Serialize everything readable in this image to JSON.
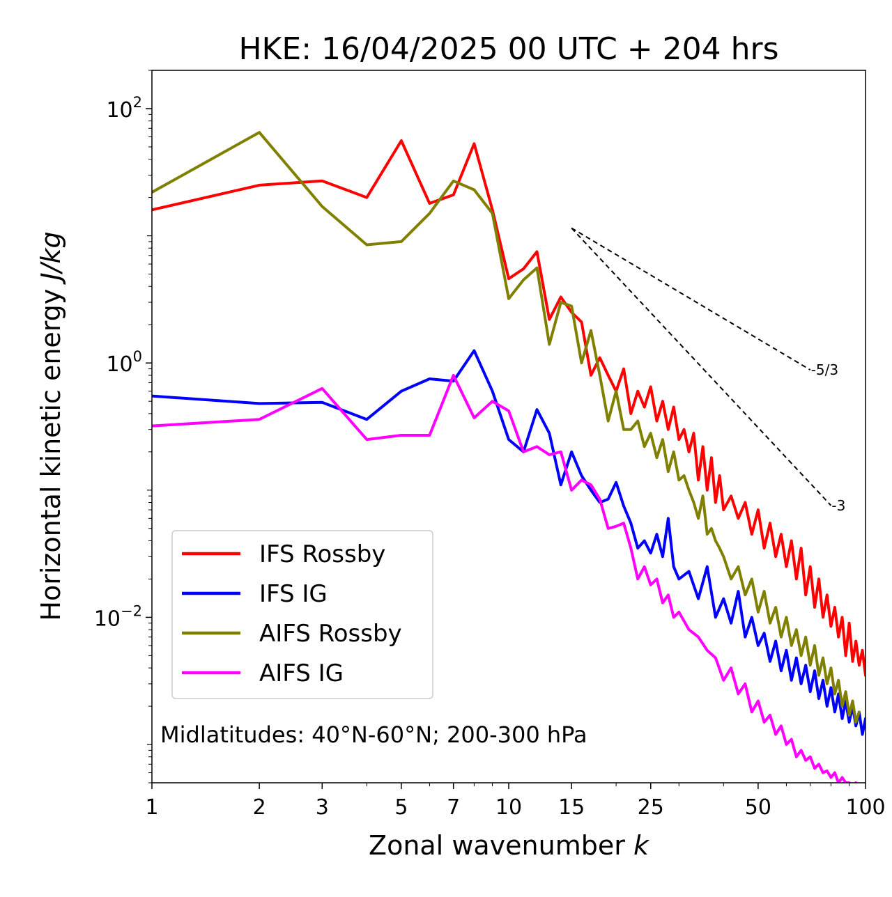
{
  "chart_data": {
    "type": "line",
    "title": "HKE: 16/04/2025 00 UTC + 204 hrs",
    "xlabel": "Zonal wavenumber",
    "xlabel_var": "k",
    "ylabel": "Horizontal kinetic energy",
    "ylabel_unit": "J/kg",
    "xscale": "log",
    "yscale": "log",
    "xlim": [
      1,
      100
    ],
    "ylim": [
      0.0005,
      200
    ],
    "x_ticks": [
      {
        "value": 1,
        "label": "1"
      },
      {
        "value": 2,
        "label": "2"
      },
      {
        "value": 3,
        "label": "3"
      },
      {
        "value": 5,
        "label": "5"
      },
      {
        "value": 7,
        "label": "7"
      },
      {
        "value": 10,
        "label": "10"
      },
      {
        "value": 15,
        "label": "15"
      },
      {
        "value": 25,
        "label": "25"
      },
      {
        "value": 50,
        "label": "50"
      },
      {
        "value": 100,
        "label": "100"
      }
    ],
    "y_ticks": [
      {
        "value": 100,
        "base": "10",
        "exp": "2"
      },
      {
        "value": 1,
        "base": "10",
        "exp": "0"
      },
      {
        "value": 0.01,
        "base": "10",
        "exp": "−2"
      }
    ],
    "legend_position": "lower-left",
    "annotation": "Midlatitudes: 40°N-60°N; 200-300 hPa",
    "reference_lines": [
      {
        "label": "-5/3",
        "slope": -1.6667,
        "x": [
          15,
          70
        ],
        "y_start": 11.5
      },
      {
        "label": "-3",
        "slope": -3,
        "x": [
          15,
          80
        ],
        "y_start": 11.5
      }
    ],
    "series": [
      {
        "name": "IFS Rossby",
        "color": "#ff0000",
        "x": [
          1,
          2,
          3,
          4,
          5,
          6,
          7,
          8,
          9,
          10,
          11,
          12,
          13,
          14,
          15,
          16,
          17,
          18,
          19,
          20,
          21,
          22,
          23,
          24,
          25,
          26,
          27,
          28,
          29,
          30,
          31,
          32,
          33,
          34,
          35,
          36,
          37,
          38,
          39,
          40,
          42,
          44,
          46,
          48,
          50,
          52,
          54,
          56,
          58,
          60,
          62,
          64,
          66,
          68,
          70,
          72,
          74,
          76,
          78,
          80,
          82,
          84,
          86,
          88,
          90,
          92,
          94,
          96,
          98,
          100
        ],
        "values": [
          16,
          25,
          27,
          20,
          56,
          18,
          21,
          53,
          16,
          4.6,
          5.5,
          7.5,
          2.2,
          3.3,
          2.5,
          2.1,
          0.8,
          1.1,
          0.8,
          0.6,
          0.9,
          0.4,
          0.6,
          0.45,
          0.65,
          0.35,
          0.5,
          0.3,
          0.45,
          0.25,
          0.3,
          0.2,
          0.28,
          0.12,
          0.22,
          0.1,
          0.18,
          0.08,
          0.13,
          0.07,
          0.09,
          0.06,
          0.08,
          0.045,
          0.07,
          0.035,
          0.055,
          0.03,
          0.045,
          0.025,
          0.04,
          0.02,
          0.035,
          0.015,
          0.025,
          0.012,
          0.02,
          0.01,
          0.015,
          0.0085,
          0.012,
          0.007,
          0.01,
          0.005,
          0.009,
          0.0045,
          0.0065,
          0.0042,
          0.0055,
          0.0035
        ]
      },
      {
        "name": "IFS IG",
        "color": "#0000ff",
        "x": [
          1,
          2,
          3,
          4,
          5,
          6,
          7,
          8,
          9,
          10,
          11,
          12,
          13,
          14,
          15,
          16,
          17,
          18,
          19,
          20,
          21,
          22,
          23,
          24,
          25,
          26,
          27,
          28,
          29,
          30,
          32,
          34,
          36,
          38,
          40,
          42,
          44,
          46,
          48,
          50,
          52,
          54,
          56,
          58,
          60,
          62,
          64,
          66,
          68,
          70,
          72,
          74,
          76,
          78,
          80,
          82,
          84,
          86,
          88,
          90,
          92,
          94,
          96,
          98,
          100
        ],
        "values": [
          0.55,
          0.48,
          0.49,
          0.36,
          0.6,
          0.75,
          0.72,
          1.25,
          0.6,
          0.25,
          0.2,
          0.43,
          0.28,
          0.11,
          0.2,
          0.13,
          0.1,
          0.08,
          0.085,
          0.115,
          0.075,
          0.055,
          0.035,
          0.04,
          0.032,
          0.045,
          0.03,
          0.06,
          0.025,
          0.02,
          0.023,
          0.014,
          0.025,
          0.01,
          0.014,
          0.009,
          0.016,
          0.007,
          0.01,
          0.006,
          0.0075,
          0.0045,
          0.0065,
          0.0038,
          0.0055,
          0.0032,
          0.0048,
          0.003,
          0.0042,
          0.0026,
          0.0038,
          0.0023,
          0.0032,
          0.002,
          0.0028,
          0.0018,
          0.0025,
          0.0016,
          0.0022,
          0.0015,
          0.002,
          0.0014,
          0.0018,
          0.0012,
          0.0016
        ]
      },
      {
        "name": "AIFS Rossby",
        "color": "#808000",
        "x": [
          1,
          2,
          3,
          4,
          5,
          6,
          7,
          8,
          9,
          10,
          11,
          12,
          13,
          14,
          15,
          16,
          17,
          18,
          19,
          20,
          21,
          22,
          23,
          24,
          25,
          26,
          27,
          28,
          29,
          30,
          31,
          32,
          33,
          34,
          35,
          36,
          37,
          38,
          39,
          40,
          42,
          44,
          46,
          48,
          50,
          52,
          54,
          56,
          58,
          60,
          62,
          64,
          66,
          68,
          70,
          72,
          74,
          76,
          78,
          80,
          82,
          84,
          86,
          88,
          90,
          92,
          94,
          96
        ],
        "values": [
          22,
          65,
          17,
          8.5,
          9,
          15,
          27,
          23,
          15,
          3.2,
          4.5,
          5.6,
          1.4,
          3,
          2.8,
          1,
          1.8,
          0.8,
          0.35,
          0.6,
          0.3,
          0.3,
          0.35,
          0.22,
          0.28,
          0.18,
          0.25,
          0.14,
          0.2,
          0.12,
          0.13,
          0.1,
          0.08,
          0.06,
          0.09,
          0.045,
          0.05,
          0.04,
          0.035,
          0.03,
          0.02,
          0.025,
          0.015,
          0.02,
          0.011,
          0.016,
          0.009,
          0.012,
          0.007,
          0.01,
          0.006,
          0.008,
          0.005,
          0.007,
          0.0042,
          0.006,
          0.0035,
          0.0048,
          0.003,
          0.004,
          0.0025,
          0.0032,
          0.002,
          0.0026,
          0.0017,
          0.0022,
          0.0015,
          0.0018
        ]
      },
      {
        "name": "AIFS IG",
        "color": "#ff00ff",
        "x": [
          1,
          2,
          3,
          4,
          5,
          6,
          7,
          8,
          9,
          10,
          11,
          12,
          13,
          14,
          15,
          16,
          17,
          18,
          19,
          20,
          21,
          22,
          23,
          24,
          25,
          26,
          27,
          28,
          29,
          30,
          32,
          34,
          36,
          38,
          40,
          42,
          44,
          46,
          48,
          50,
          52,
          54,
          56,
          58,
          60,
          62,
          64,
          66,
          68,
          70,
          72,
          74,
          76,
          78,
          80,
          82,
          84,
          86,
          88,
          90,
          92,
          94,
          96
        ],
        "values": [
          0.32,
          0.36,
          0.63,
          0.25,
          0.27,
          0.27,
          0.8,
          0.37,
          0.5,
          0.42,
          0.2,
          0.22,
          0.19,
          0.2,
          0.1,
          0.12,
          0.11,
          0.085,
          0.05,
          0.052,
          0.055,
          0.035,
          0.02,
          0.025,
          0.018,
          0.02,
          0.013,
          0.015,
          0.01,
          0.011,
          0.008,
          0.007,
          0.0055,
          0.0048,
          0.0032,
          0.004,
          0.0025,
          0.003,
          0.0018,
          0.0022,
          0.0015,
          0.0017,
          0.0012,
          0.0014,
          0.001,
          0.0011,
          0.0008,
          0.0009,
          0.00075,
          0.0008,
          0.00065,
          0.0007,
          0.0006,
          0.00062,
          0.00055,
          0.0006,
          0.0005,
          0.00055,
          0.0005,
          0.0005,
          0.00048,
          0.0005,
          0.00045
        ]
      }
    ]
  }
}
